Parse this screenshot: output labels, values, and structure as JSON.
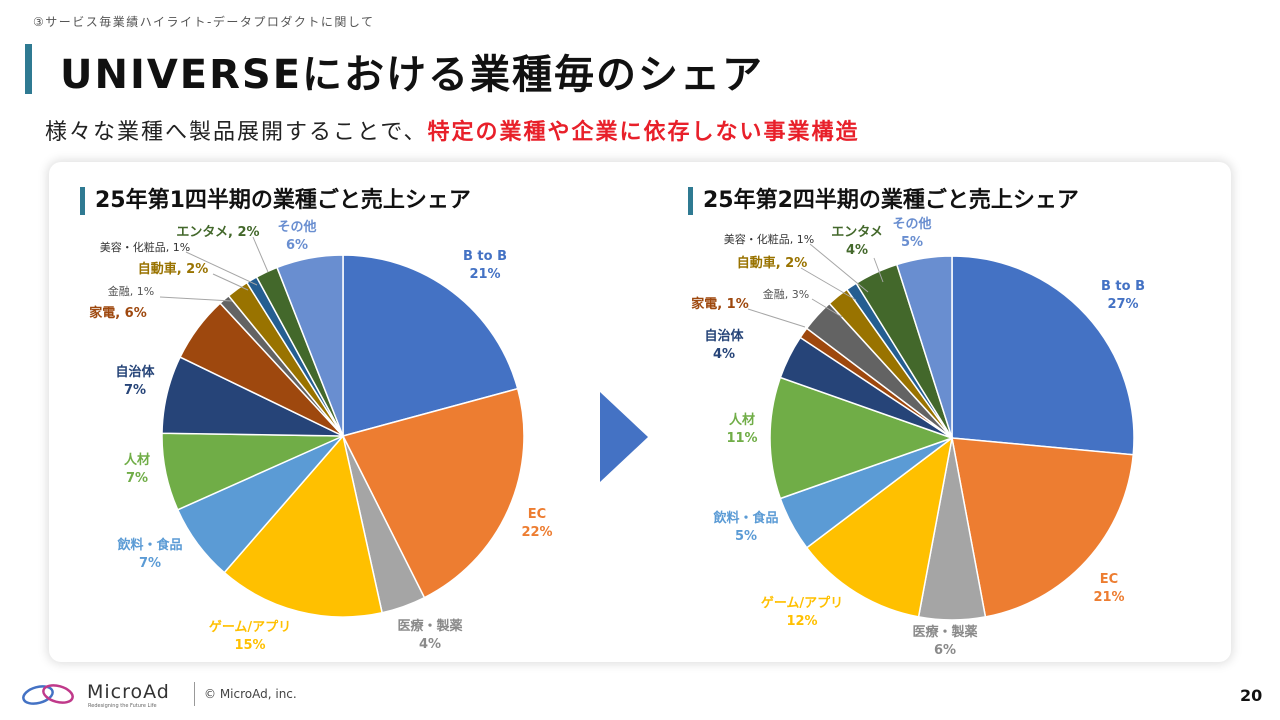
{
  "breadcrumb": "③サービス毎業績ハイライト-データプロダクトに関して",
  "title": "UNIVERSEにおける業種毎のシェア",
  "subtitle": {
    "normal": "様々な業種へ製品展開することで、",
    "highlight": "特定の業種や企業に依存しない事業構造"
  },
  "footer": {
    "logo": "MicroAd",
    "tagline": "Redesigning the Future Life",
    "copyright": "© MicroAd, inc.",
    "page_number": "20"
  },
  "chart_data": [
    {
      "type": "pie",
      "title": "25年第1四半期の業種ごと売上シェア",
      "slices": [
        {
          "label": "B to B",
          "value": 21,
          "color": "#4472c4"
        },
        {
          "label": "EC",
          "value": 22,
          "color": "#ed7d31"
        },
        {
          "label": "医療・製薬",
          "value": 4,
          "color": "#a5a5a5"
        },
        {
          "label": "ゲーム/アプリ",
          "value": 15,
          "color": "#ffc000"
        },
        {
          "label": "飲料・食品",
          "value": 7,
          "color": "#5b9bd5"
        },
        {
          "label": "人材",
          "value": 7,
          "color": "#70ad47"
        },
        {
          "label": "自治体",
          "value": 7,
          "color": "#264478"
        },
        {
          "label": "家電",
          "value": 6,
          "color": "#9e480e"
        },
        {
          "label": "金融",
          "value": 1,
          "color": "#636363"
        },
        {
          "label": "自動車",
          "value": 2,
          "color": "#997300"
        },
        {
          "label": "美容・化粧品",
          "value": 1,
          "color": "#255e91"
        },
        {
          "label": "エンタメ",
          "value": 2,
          "color": "#43682b"
        },
        {
          "label": "その他",
          "value": 6,
          "color": "#698ed0"
        }
      ]
    },
    {
      "type": "pie",
      "title": "25年第2四半期の業種ごと売上シェア",
      "slices": [
        {
          "label": "B to B",
          "value": 27,
          "color": "#4472c4"
        },
        {
          "label": "EC",
          "value": 21,
          "color": "#ed7d31"
        },
        {
          "label": "医療・製薬",
          "value": 6,
          "color": "#a5a5a5"
        },
        {
          "label": "ゲーム/アプリ",
          "value": 12,
          "color": "#ffc000"
        },
        {
          "label": "飲料・食品",
          "value": 5,
          "color": "#5b9bd5"
        },
        {
          "label": "人材",
          "value": 11,
          "color": "#70ad47"
        },
        {
          "label": "自治体",
          "value": 4,
          "color": "#264478"
        },
        {
          "label": "家電",
          "value": 1,
          "color": "#9e480e"
        },
        {
          "label": "金融",
          "value": 3,
          "color": "#636363"
        },
        {
          "label": "自動車",
          "value": 2,
          "color": "#997300"
        },
        {
          "label": "美容・化粧品",
          "value": 1,
          "color": "#255e91"
        },
        {
          "label": "エンタメ",
          "value": 4,
          "color": "#43682b"
        },
        {
          "label": "その他",
          "value": 5,
          "color": "#698ed0"
        }
      ]
    }
  ]
}
